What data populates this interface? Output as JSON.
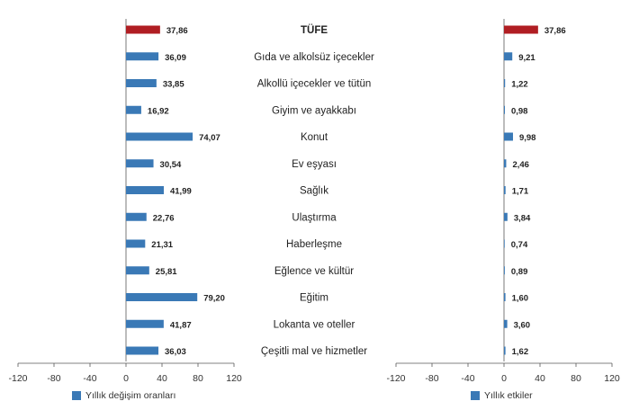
{
  "colors": {
    "highlight": "#b01e23",
    "bar": "#3a79b6",
    "axis": "#595959",
    "text": "#222222"
  },
  "chart_data": [
    {
      "type": "bar",
      "orientation": "horizontal",
      "categories": [
        "TÜFE",
        "Gıda ve alkolsüz içecekler",
        "Alkollü içecekler ve tütün",
        "Giyim ve ayakkabı",
        "Konut",
        "Ev eşyası",
        "Sağlık",
        "Ulaştırma",
        "Haberleşme",
        "Eğlence ve kültür",
        "Eğitim",
        "Lokanta ve oteller",
        "Çeşitli mal ve hizmetler"
      ],
      "values": [
        37.86,
        36.09,
        33.85,
        16.92,
        74.07,
        30.54,
        41.99,
        22.76,
        21.31,
        25.81,
        79.2,
        41.87,
        36.03
      ],
      "value_labels": [
        "37,86",
        "36,09",
        "33,85",
        "16,92",
        "74,07",
        "30,54",
        "41,99",
        "22,76",
        "21,31",
        "25,81",
        "79,20",
        "41,87",
        "36,03"
      ],
      "highlight_index": 0,
      "xlim": [
        -120,
        120
      ],
      "xticks": [
        -120,
        -80,
        -40,
        0,
        40,
        80,
        120
      ],
      "xtick_labels": [
        "-120",
        "-80",
        "-40",
        "0",
        "40",
        "80",
        "120"
      ],
      "legend": "Yıllık değişim oranları",
      "legend_position": "bottom-left"
    },
    {
      "type": "bar",
      "orientation": "horizontal",
      "categories": [
        "TÜFE",
        "Gıda ve alkolsüz içecekler",
        "Alkollü içecekler ve tütün",
        "Giyim ve ayakkabı",
        "Konut",
        "Ev eşyası",
        "Sağlık",
        "Ulaştırma",
        "Haberleşme",
        "Eğlence ve kültür",
        "Eğitim",
        "Lokanta ve oteller",
        "Çeşitli mal ve hizmetler"
      ],
      "values": [
        37.86,
        9.21,
        1.22,
        0.98,
        9.98,
        2.46,
        1.71,
        3.84,
        0.74,
        0.89,
        1.6,
        3.6,
        1.62
      ],
      "value_labels": [
        "37,86",
        "9,21",
        "1,22",
        "0,98",
        "9,98",
        "2,46",
        "1,71",
        "3,84",
        "0,74",
        "0,89",
        "1,60",
        "3,60",
        "1,62"
      ],
      "highlight_index": 0,
      "xlim": [
        -120,
        120
      ],
      "xticks": [
        -120,
        -80,
        -40,
        0,
        40,
        80,
        120
      ],
      "xtick_labels": [
        "-120",
        "-80",
        "-40",
        "0",
        "40",
        "80",
        "120"
      ],
      "legend": "Yıllık etkiler",
      "legend_position": "bottom-left"
    }
  ]
}
